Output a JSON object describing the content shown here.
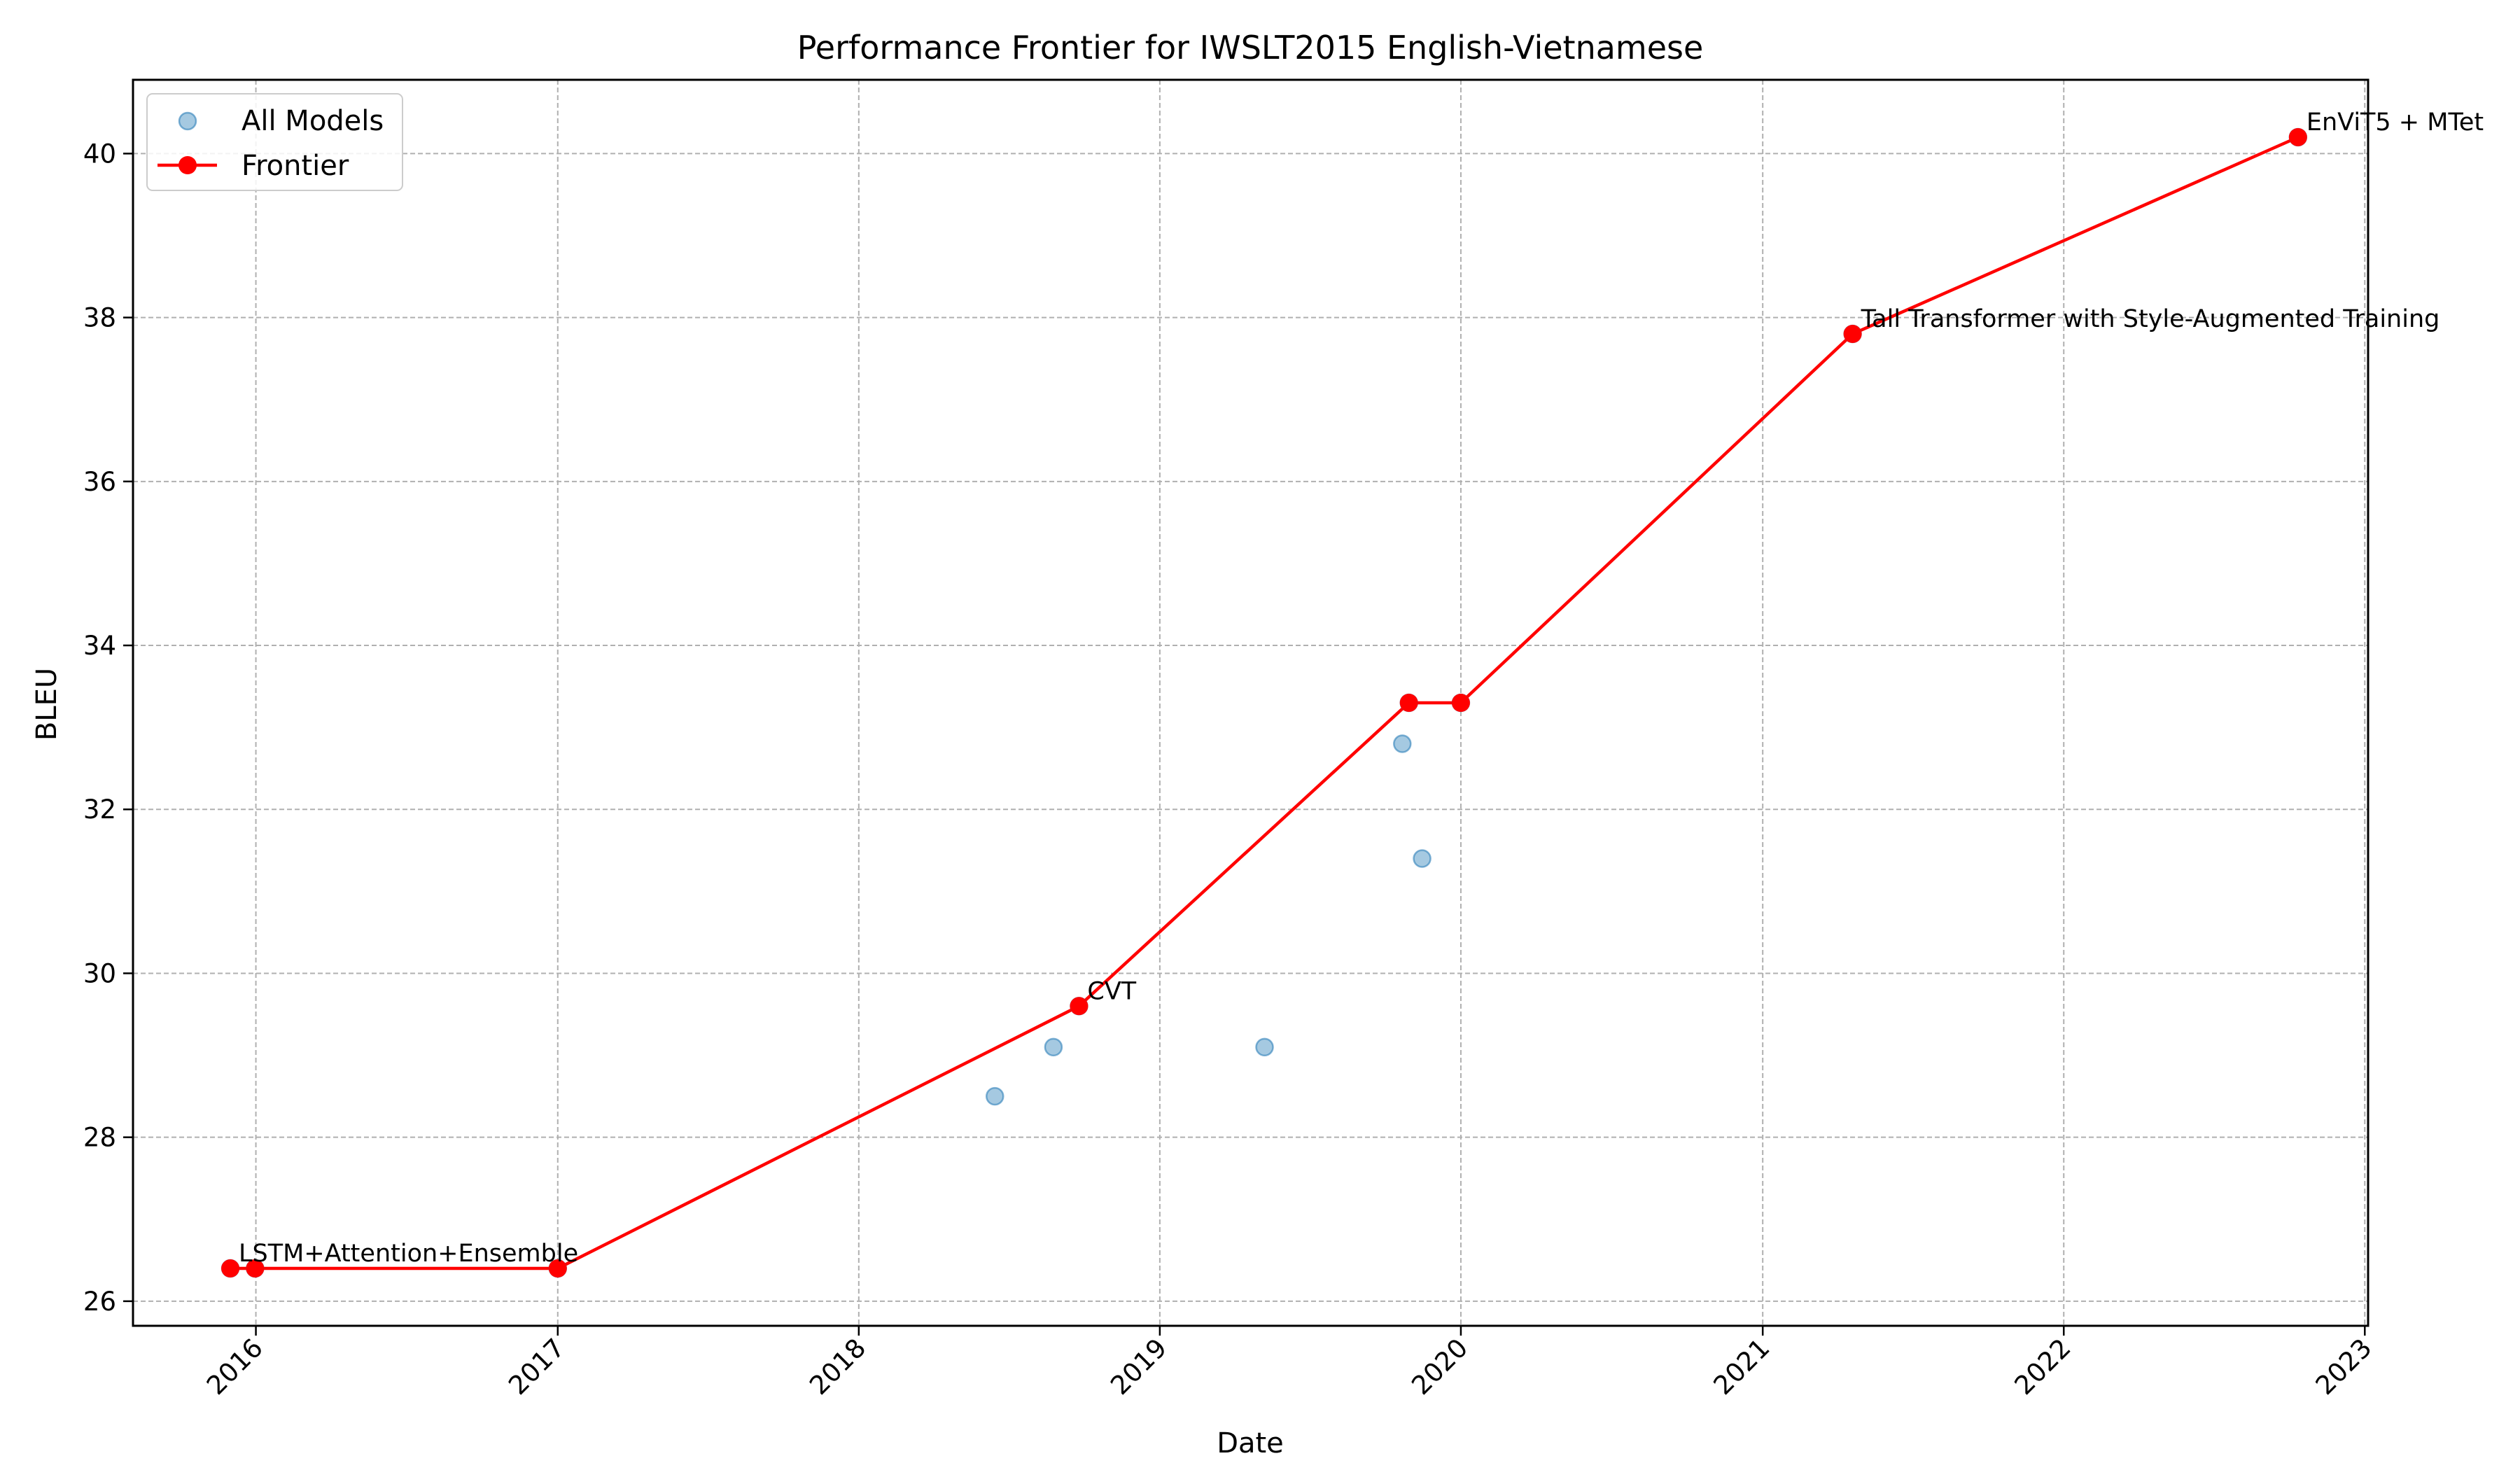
{
  "chart_data": {
    "type": "scatter",
    "title": "Performance Frontier for IWSLT2015 English-Vietnamese",
    "xlabel": "Date",
    "ylabel": "BLEU",
    "x_axis_type": "date",
    "xlim": [
      "2015-08-05",
      "2023-01-05"
    ],
    "ylim": [
      25.7,
      40.9
    ],
    "xticks": [
      "2016-01-01",
      "2017-01-01",
      "2018-01-01",
      "2019-01-01",
      "2020-01-01",
      "2021-01-01",
      "2022-01-01",
      "2023-01-01"
    ],
    "xtick_labels": [
      "2016",
      "2017",
      "2018",
      "2019",
      "2020",
      "2021",
      "2022",
      "2023"
    ],
    "xtick_rotation": 45,
    "yticks": [
      26,
      28,
      30,
      32,
      34,
      36,
      38,
      40
    ],
    "ytick_labels": [
      "26",
      "28",
      "30",
      "32",
      "34",
      "36",
      "38",
      "40"
    ],
    "grid": true,
    "legend": {
      "position": "top-left",
      "entries": [
        "All Models",
        "Frontier"
      ]
    },
    "series": [
      {
        "name": "All Models",
        "type": "scatter",
        "color": "#1f77b4",
        "points": [
          {
            "x": "2015-12-01",
            "y": 26.4
          },
          {
            "x": "2015-12-31",
            "y": 26.4
          },
          {
            "x": "2017-01-01",
            "y": 26.4
          },
          {
            "x": "2018-06-15",
            "y": 28.5
          },
          {
            "x": "2018-08-25",
            "y": 29.1
          },
          {
            "x": "2018-09-25",
            "y": 29.6
          },
          {
            "x": "2019-05-08",
            "y": 29.1
          },
          {
            "x": "2019-10-22",
            "y": 32.8
          },
          {
            "x": "2019-10-30",
            "y": 33.3
          },
          {
            "x": "2019-11-15",
            "y": 31.4
          },
          {
            "x": "2020-01-01",
            "y": 33.3
          },
          {
            "x": "2021-04-20",
            "y": 37.8
          },
          {
            "x": "2022-10-12",
            "y": 40.2
          }
        ]
      },
      {
        "name": "Frontier",
        "type": "line",
        "color": "#ff0000",
        "points": [
          {
            "x": "2015-12-01",
            "y": 26.4
          },
          {
            "x": "2015-12-31",
            "y": 26.4
          },
          {
            "x": "2017-01-01",
            "y": 26.4
          },
          {
            "x": "2018-09-25",
            "y": 29.6
          },
          {
            "x": "2019-10-30",
            "y": 33.3
          },
          {
            "x": "2020-01-01",
            "y": 33.3
          },
          {
            "x": "2021-04-20",
            "y": 37.8
          },
          {
            "x": "2022-10-12",
            "y": 40.2
          }
        ]
      }
    ],
    "annotations": [
      {
        "text": "LSTM+Attention+Ensemble",
        "x": "2015-12-01",
        "y": 26.4
      },
      {
        "text": "CVT",
        "x": "2018-09-25",
        "y": 29.6
      },
      {
        "text": "Tall Transformer with Style-Augmented Training",
        "x": "2021-04-20",
        "y": 37.8
      },
      {
        "text": "EnViT5 + MTet",
        "x": "2022-10-12",
        "y": 40.2
      }
    ]
  }
}
